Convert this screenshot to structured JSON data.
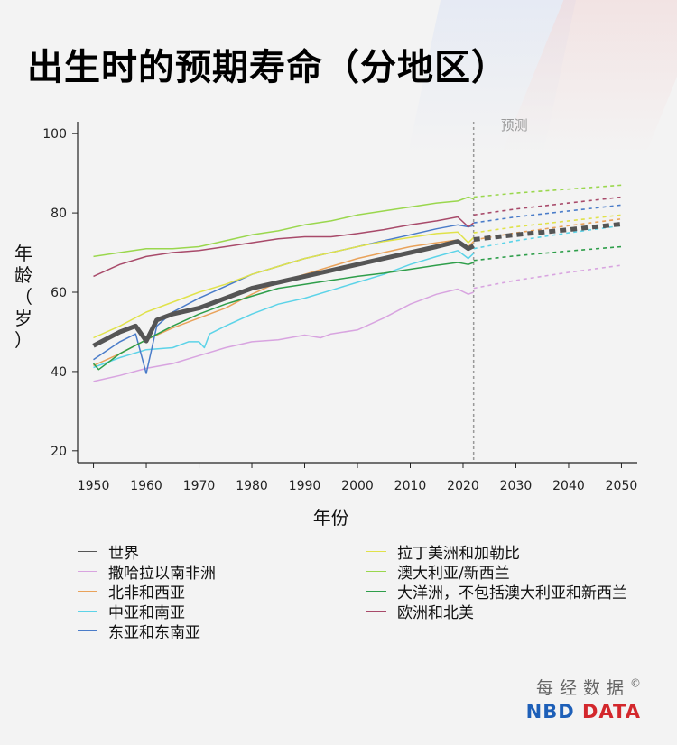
{
  "title": "出生时的预期寿命（分地区）",
  "brand": {
    "cn": "每经数据",
    "symbol": "©",
    "en_part1": "NBD",
    "en_part2": "DATA"
  },
  "chart_data": {
    "type": "line",
    "title": "出生时的预期寿命（分地区）",
    "xlabel": "年份",
    "ylabel": [
      "年",
      "龄",
      "（",
      "岁",
      "）"
    ],
    "xlim": [
      1947,
      2053
    ],
    "ylim": [
      17,
      103
    ],
    "xticks": [
      1950,
      1960,
      1970,
      1980,
      1990,
      2000,
      2010,
      2020,
      2030,
      2040,
      2050
    ],
    "yticks": [
      20,
      40,
      60,
      80,
      100
    ],
    "forecast_start": 2022,
    "forecast_label": "预测",
    "series": [
      {
        "name": "世界",
        "color": "#555555",
        "width": 5,
        "x": [
          1950,
          1955,
          1958,
          1960,
          1962,
          1965,
          1970,
          1975,
          1980,
          1985,
          1990,
          1995,
          2000,
          2005,
          2010,
          2015,
          2019,
          2021,
          2022
        ],
        "values": [
          46.5,
          50.0,
          51.5,
          47.7,
          53.0,
          54.5,
          56.0,
          58.5,
          61.0,
          62.5,
          64.0,
          65.5,
          67.0,
          68.5,
          70.0,
          71.5,
          72.8,
          71.0,
          71.7
        ],
        "forecast": {
          "x": [
            2022,
            2030,
            2040,
            2050
          ],
          "values": [
            73.3,
            74.5,
            75.8,
            77.2
          ]
        }
      },
      {
        "name": "撒哈拉以南非洲",
        "color": "#d8a4e0",
        "width": 1.5,
        "x": [
          1950,
          1955,
          1960,
          1965,
          1970,
          1975,
          1980,
          1985,
          1990,
          1993,
          1995,
          2000,
          2005,
          2010,
          2015,
          2019,
          2021,
          2022
        ],
        "values": [
          37.5,
          39.0,
          40.8,
          42.0,
          44.0,
          46.0,
          47.5,
          48.0,
          49.2,
          48.5,
          49.5,
          50.5,
          53.5,
          57.0,
          59.5,
          60.8,
          59.5,
          60.0
        ],
        "forecast": {
          "x": [
            2022,
            2030,
            2040,
            2050
          ],
          "values": [
            61.0,
            63.0,
            65.0,
            66.8
          ]
        }
      },
      {
        "name": "北非和西亚",
        "color": "#e9a25a",
        "width": 1.5,
        "x": [
          1950,
          1955,
          1960,
          1965,
          1970,
          1975,
          1980,
          1985,
          1990,
          1995,
          2000,
          2005,
          2010,
          2015,
          2019,
          2021,
          2022
        ],
        "values": [
          41.5,
          44.5,
          48.0,
          51.0,
          53.5,
          56.0,
          59.5,
          62.5,
          64.5,
          66.5,
          68.5,
          70.0,
          71.5,
          72.5,
          73.2,
          71.5,
          72.8
        ],
        "forecast": {
          "x": [
            2022,
            2030,
            2040,
            2050
          ],
          "values": [
            73.2,
            75.0,
            76.8,
            78.5
          ]
        }
      },
      {
        "name": "中亚和南亚",
        "color": "#5cd3e8",
        "width": 1.5,
        "x": [
          1950,
          1955,
          1960,
          1965,
          1968,
          1970,
          1971,
          1972,
          1975,
          1980,
          1985,
          1990,
          1995,
          2000,
          2005,
          2010,
          2015,
          2019,
          2021,
          2022
        ],
        "values": [
          41.0,
          43.5,
          45.5,
          46.0,
          47.5,
          47.5,
          46.0,
          49.5,
          51.5,
          54.5,
          57.0,
          58.5,
          60.5,
          62.5,
          64.5,
          67.0,
          69.0,
          70.5,
          68.5,
          69.8
        ],
        "forecast": {
          "x": [
            2022,
            2030,
            2040,
            2050
          ],
          "values": [
            71.0,
            73.0,
            75.0,
            76.8
          ]
        }
      },
      {
        "name": "东亚和东南亚",
        "color": "#4a7cc9",
        "width": 1.5,
        "x": [
          1950,
          1955,
          1958,
          1960,
          1962,
          1965,
          1970,
          1975,
          1980,
          1985,
          1990,
          1995,
          2000,
          2005,
          2010,
          2015,
          2019,
          2021,
          2022
        ],
        "values": [
          43.0,
          47.5,
          49.5,
          39.5,
          51.5,
          55.0,
          58.5,
          61.5,
          64.5,
          66.5,
          68.5,
          70.0,
          71.5,
          73.0,
          74.5,
          76.0,
          77.0,
          76.5,
          76.8
        ],
        "forecast": {
          "x": [
            2022,
            2030,
            2040,
            2050
          ],
          "values": [
            77.5,
            79.0,
            80.5,
            82.0
          ]
        }
      },
      {
        "name": "拉丁美洲和加勒比",
        "color": "#e0e24a",
        "width": 1.5,
        "x": [
          1950,
          1955,
          1960,
          1965,
          1970,
          1975,
          1980,
          1985,
          1990,
          1995,
          2000,
          2005,
          2010,
          2015,
          2019,
          2021,
          2022
        ],
        "values": [
          48.5,
          51.5,
          55.0,
          57.5,
          60.0,
          62.0,
          64.5,
          66.5,
          68.5,
          70.0,
          71.5,
          72.8,
          73.8,
          74.8,
          75.2,
          72.5,
          73.8
        ],
        "forecast": {
          "x": [
            2022,
            2030,
            2040,
            2050
          ],
          "values": [
            75.0,
            76.5,
            78.0,
            79.5
          ]
        }
      },
      {
        "name": "澳大利亚/新西兰",
        "color": "#9ad74d",
        "width": 1.5,
        "x": [
          1950,
          1955,
          1960,
          1965,
          1970,
          1975,
          1980,
          1985,
          1990,
          1995,
          2000,
          2005,
          2010,
          2015,
          2019,
          2021,
          2022
        ],
        "values": [
          69.0,
          70.0,
          71.0,
          71.0,
          71.5,
          73.0,
          74.5,
          75.5,
          77.0,
          78.0,
          79.5,
          80.5,
          81.5,
          82.5,
          83.0,
          84.0,
          83.5
        ],
        "forecast": {
          "x": [
            2022,
            2030,
            2040,
            2050
          ],
          "values": [
            84.0,
            85.0,
            86.0,
            87.0
          ]
        }
      },
      {
        "name": "大洋洲，不包括澳大利亚和新西兰",
        "color": "#2e9e4a",
        "width": 1.5,
        "x": [
          1950,
          1951,
          1955,
          1960,
          1965,
          1970,
          1975,
          1980,
          1985,
          1990,
          1995,
          2000,
          2005,
          2010,
          2015,
          2019,
          2021,
          2022
        ],
        "values": [
          42.0,
          40.5,
          44.5,
          48.0,
          51.5,
          54.5,
          57.0,
          59.0,
          61.0,
          62.0,
          63.0,
          64.0,
          64.8,
          65.8,
          66.8,
          67.5,
          67.0,
          67.5
        ],
        "forecast": {
          "x": [
            2022,
            2030,
            2040,
            2050
          ],
          "values": [
            68.0,
            69.2,
            70.4,
            71.5
          ]
        }
      },
      {
        "name": "欧洲和北美",
        "color": "#a84a6a",
        "width": 1.5,
        "x": [
          1950,
          1955,
          1960,
          1965,
          1970,
          1975,
          1980,
          1985,
          1990,
          1995,
          2000,
          2005,
          2010,
          2015,
          2019,
          2021,
          2022
        ],
        "values": [
          64.0,
          67.0,
          69.0,
          70.0,
          70.5,
          71.5,
          72.5,
          73.5,
          74.0,
          74.0,
          74.8,
          75.8,
          77.0,
          78.0,
          79.0,
          76.5,
          77.5
        ],
        "forecast": {
          "x": [
            2022,
            2030,
            2040,
            2050
          ],
          "values": [
            79.5,
            81.0,
            82.5,
            84.0
          ]
        }
      }
    ]
  }
}
